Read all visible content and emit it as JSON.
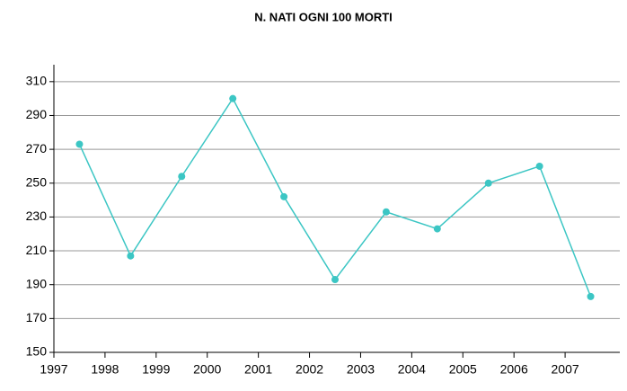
{
  "chart_data": {
    "type": "line",
    "title": "N. NATI OGNI 100 MORTI",
    "categories": [
      "1997",
      "1998",
      "1999",
      "2000",
      "2001",
      "2002",
      "2003",
      "2004",
      "2005",
      "2006",
      "2007"
    ],
    "series": [
      {
        "name": "N. nati ogni 100 morti",
        "color": "#3cc6c4",
        "values": [
          273,
          207,
          254,
          300,
          242,
          193,
          233,
          223,
          250,
          260,
          183
        ]
      }
    ],
    "ylim": [
      150,
      320
    ],
    "yticks": [
      150,
      170,
      190,
      210,
      230,
      250,
      270,
      290,
      310
    ],
    "grid": true
  }
}
